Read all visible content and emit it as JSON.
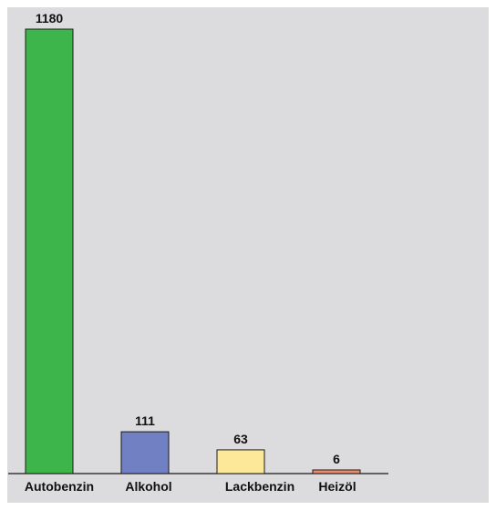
{
  "chart_data": {
    "type": "bar",
    "categories": [
      "Autobenzin",
      "Alkohol",
      "Lackbenzin",
      "Heizöl"
    ],
    "values": [
      1180,
      111,
      63,
      6
    ],
    "value_labels": [
      "1180",
      "111",
      "63",
      "6"
    ],
    "ylim": [
      0,
      1180
    ],
    "grid": false,
    "colors": [
      "#3db54a",
      "#7180c2",
      "#fde89a",
      "#f08a6c"
    ],
    "stroke": "#1a1a1a"
  }
}
